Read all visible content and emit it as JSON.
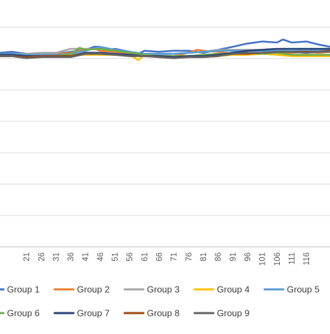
{
  "chart_data": {
    "type": "line",
    "title": "",
    "xlabel": "",
    "ylabel": "",
    "grid": true,
    "legend_position": "bottom",
    "x_range": [
      12,
      124
    ],
    "x_ticks": [
      21,
      26,
      31,
      36,
      41,
      46,
      51,
      56,
      61,
      66,
      71,
      76,
      81,
      86,
      91,
      96,
      101,
      106,
      111,
      116
    ],
    "y_axis": {
      "labels_visible": false,
      "range": [
        0,
        1
      ],
      "gridlines": [
        0.0,
        0.125,
        0.25,
        0.375,
        0.5,
        0.625,
        0.75,
        0.875,
        1.0
      ]
    },
    "series": [
      {
        "name": "Group 1",
        "color": "#4472C4",
        "points": [
          [
            12,
            0.773
          ],
          [
            16,
            0.777
          ],
          [
            21,
            0.769
          ],
          [
            26,
            0.765
          ],
          [
            31,
            0.769
          ],
          [
            36,
            0.777
          ],
          [
            41,
            0.785
          ],
          [
            44,
            0.797
          ],
          [
            46,
            0.797
          ],
          [
            49,
            0.785
          ],
          [
            51,
            0.789
          ],
          [
            56,
            0.777
          ],
          [
            59,
            0.769
          ],
          [
            61,
            0.781
          ],
          [
            66,
            0.777
          ],
          [
            71,
            0.781
          ],
          [
            76,
            0.781
          ],
          [
            81,
            0.773
          ],
          [
            86,
            0.785
          ],
          [
            91,
            0.797
          ],
          [
            96,
            0.81
          ],
          [
            101,
            0.818
          ],
          [
            106,
            0.814
          ],
          [
            108,
            0.826
          ],
          [
            111,
            0.814
          ],
          [
            116,
            0.818
          ],
          [
            120,
            0.806
          ],
          [
            124,
            0.797
          ]
        ]
      },
      {
        "name": "Group 2",
        "color": "#ED7D31",
        "points": [
          [
            12,
            0.76
          ],
          [
            16,
            0.765
          ],
          [
            21,
            0.765
          ],
          [
            26,
            0.763
          ],
          [
            31,
            0.769
          ],
          [
            36,
            0.773
          ],
          [
            41,
            0.785
          ],
          [
            44,
            0.789
          ],
          [
            46,
            0.781
          ],
          [
            51,
            0.777
          ],
          [
            56,
            0.769
          ],
          [
            61,
            0.76
          ],
          [
            66,
            0.76
          ],
          [
            71,
            0.76
          ],
          [
            76,
            0.773
          ],
          [
            79,
            0.785
          ],
          [
            81,
            0.781
          ],
          [
            86,
            0.777
          ],
          [
            91,
            0.769
          ],
          [
            96,
            0.773
          ],
          [
            101,
            0.769
          ],
          [
            106,
            0.773
          ],
          [
            111,
            0.773
          ],
          [
            116,
            0.777
          ],
          [
            120,
            0.773
          ],
          [
            124,
            0.777
          ]
        ]
      },
      {
        "name": "Group 3",
        "color": "#A5A5A5",
        "points": [
          [
            12,
            0.765
          ],
          [
            16,
            0.769
          ],
          [
            21,
            0.769
          ],
          [
            26,
            0.773
          ],
          [
            31,
            0.773
          ],
          [
            36,
            0.789
          ],
          [
            41,
            0.789
          ],
          [
            46,
            0.789
          ],
          [
            51,
            0.781
          ],
          [
            56,
            0.777
          ],
          [
            61,
            0.765
          ],
          [
            66,
            0.765
          ],
          [
            71,
            0.769
          ],
          [
            76,
            0.773
          ],
          [
            81,
            0.777
          ],
          [
            86,
            0.785
          ],
          [
            91,
            0.785
          ],
          [
            96,
            0.785
          ],
          [
            101,
            0.785
          ],
          [
            106,
            0.785
          ],
          [
            111,
            0.781
          ],
          [
            116,
            0.785
          ],
          [
            120,
            0.785
          ],
          [
            124,
            0.781
          ]
        ]
      },
      {
        "name": "Group 4",
        "color": "#FFC000",
        "points": [
          [
            12,
            0.76
          ],
          [
            16,
            0.76
          ],
          [
            21,
            0.752
          ],
          [
            26,
            0.756
          ],
          [
            31,
            0.76
          ],
          [
            36,
            0.765
          ],
          [
            41,
            0.765
          ],
          [
            46,
            0.765
          ],
          [
            51,
            0.765
          ],
          [
            56,
            0.765
          ],
          [
            59,
            0.744
          ],
          [
            61,
            0.765
          ],
          [
            66,
            0.756
          ],
          [
            71,
            0.76
          ],
          [
            76,
            0.76
          ],
          [
            81,
            0.756
          ],
          [
            86,
            0.76
          ],
          [
            91,
            0.765
          ],
          [
            96,
            0.765
          ],
          [
            101,
            0.769
          ],
          [
            106,
            0.765
          ],
          [
            111,
            0.76
          ],
          [
            116,
            0.76
          ],
          [
            120,
            0.76
          ],
          [
            124,
            0.76
          ]
        ]
      },
      {
        "name": "Group 5",
        "color": "#5B9BD5",
        "points": [
          [
            12,
            0.769
          ],
          [
            16,
            0.769
          ],
          [
            21,
            0.765
          ],
          [
            26,
            0.765
          ],
          [
            31,
            0.765
          ],
          [
            36,
            0.769
          ],
          [
            41,
            0.781
          ],
          [
            46,
            0.797
          ],
          [
            51,
            0.785
          ],
          [
            56,
            0.777
          ],
          [
            61,
            0.769
          ],
          [
            66,
            0.769
          ],
          [
            71,
            0.769
          ],
          [
            76,
            0.773
          ],
          [
            81,
            0.777
          ],
          [
            86,
            0.781
          ],
          [
            91,
            0.781
          ],
          [
            96,
            0.781
          ],
          [
            101,
            0.781
          ],
          [
            106,
            0.781
          ],
          [
            111,
            0.781
          ],
          [
            116,
            0.781
          ],
          [
            120,
            0.785
          ],
          [
            124,
            0.785
          ]
        ]
      },
      {
        "name": "Group 6",
        "color": "#70AD47",
        "points": [
          [
            12,
            0.76
          ],
          [
            16,
            0.76
          ],
          [
            21,
            0.756
          ],
          [
            26,
            0.76
          ],
          [
            31,
            0.76
          ],
          [
            36,
            0.769
          ],
          [
            39,
            0.793
          ],
          [
            41,
            0.785
          ],
          [
            46,
            0.789
          ],
          [
            51,
            0.781
          ],
          [
            56,
            0.773
          ],
          [
            61,
            0.765
          ],
          [
            66,
            0.76
          ],
          [
            71,
            0.76
          ],
          [
            76,
            0.76
          ],
          [
            81,
            0.765
          ],
          [
            86,
            0.769
          ],
          [
            91,
            0.769
          ],
          [
            96,
            0.773
          ],
          [
            101,
            0.769
          ],
          [
            106,
            0.773
          ],
          [
            111,
            0.765
          ],
          [
            116,
            0.765
          ],
          [
            120,
            0.765
          ],
          [
            124,
            0.765
          ]
        ]
      },
      {
        "name": "Group 7",
        "color": "#264478",
        "points": [
          [
            12,
            0.765
          ],
          [
            16,
            0.765
          ],
          [
            21,
            0.76
          ],
          [
            26,
            0.76
          ],
          [
            31,
            0.76
          ],
          [
            36,
            0.76
          ],
          [
            41,
            0.773
          ],
          [
            46,
            0.773
          ],
          [
            51,
            0.769
          ],
          [
            56,
            0.765
          ],
          [
            61,
            0.76
          ],
          [
            66,
            0.76
          ],
          [
            71,
            0.756
          ],
          [
            76,
            0.76
          ],
          [
            81,
            0.76
          ],
          [
            86,
            0.765
          ],
          [
            91,
            0.773
          ],
          [
            96,
            0.781
          ],
          [
            101,
            0.785
          ],
          [
            106,
            0.789
          ],
          [
            111,
            0.789
          ],
          [
            116,
            0.789
          ],
          [
            120,
            0.789
          ],
          [
            124,
            0.789
          ]
        ]
      },
      {
        "name": "Group 8",
        "color": "#9E480E",
        "points": [
          [
            12,
            0.76
          ],
          [
            16,
            0.76
          ],
          [
            21,
            0.756
          ],
          [
            26,
            0.76
          ],
          [
            31,
            0.76
          ],
          [
            36,
            0.76
          ],
          [
            41,
            0.769
          ],
          [
            46,
            0.769
          ],
          [
            51,
            0.765
          ],
          [
            56,
            0.76
          ],
          [
            61,
            0.76
          ],
          [
            66,
            0.756
          ],
          [
            71,
            0.752
          ],
          [
            76,
            0.756
          ],
          [
            81,
            0.756
          ],
          [
            86,
            0.76
          ],
          [
            91,
            0.769
          ],
          [
            96,
            0.769
          ],
          [
            101,
            0.773
          ],
          [
            106,
            0.777
          ],
          [
            111,
            0.777
          ],
          [
            116,
            0.777
          ],
          [
            120,
            0.777
          ],
          [
            124,
            0.781
          ]
        ]
      },
      {
        "name": "Group 9",
        "color": "#636363",
        "points": [
          [
            12,
            0.76
          ],
          [
            16,
            0.76
          ],
          [
            21,
            0.752
          ],
          [
            26,
            0.756
          ],
          [
            31,
            0.756
          ],
          [
            36,
            0.756
          ],
          [
            41,
            0.769
          ],
          [
            46,
            0.769
          ],
          [
            51,
            0.765
          ],
          [
            56,
            0.76
          ],
          [
            61,
            0.76
          ],
          [
            66,
            0.756
          ],
          [
            71,
            0.752
          ],
          [
            76,
            0.756
          ],
          [
            81,
            0.756
          ],
          [
            86,
            0.76
          ],
          [
            91,
            0.769
          ],
          [
            96,
            0.773
          ],
          [
            101,
            0.773
          ],
          [
            106,
            0.777
          ],
          [
            111,
            0.777
          ],
          [
            116,
            0.773
          ],
          [
            120,
            0.777
          ],
          [
            124,
            0.777
          ]
        ]
      }
    ]
  }
}
